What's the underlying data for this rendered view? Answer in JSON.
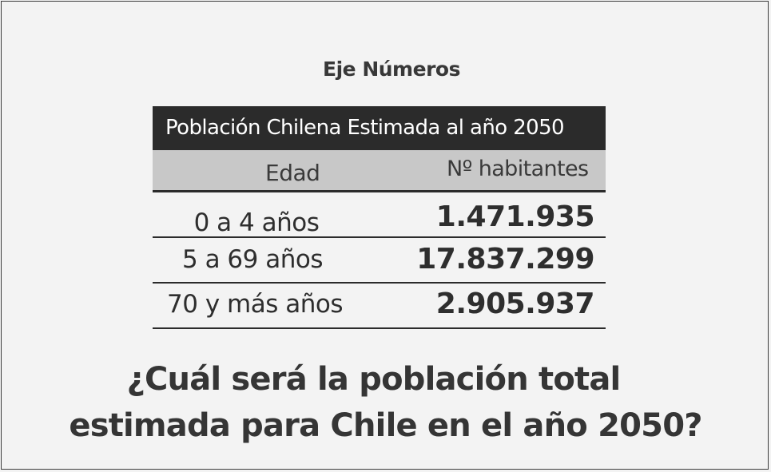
{
  "section_title": "Eje Números",
  "table": {
    "title": "Población Chilena Estimada al año 2050",
    "headers": {
      "age": "Edad",
      "count": "Nº habitantes"
    },
    "rows": [
      {
        "age": "0 a 4 años",
        "count": "1.471.935"
      },
      {
        "age": "5 a 69 años",
        "count": "17.837.299"
      },
      {
        "age": "70 y más años",
        "count": "2.905.937"
      }
    ]
  },
  "question": {
    "line1": "¿Cuál será la población total",
    "line2": "estimada para Chile en el año 2050?"
  }
}
